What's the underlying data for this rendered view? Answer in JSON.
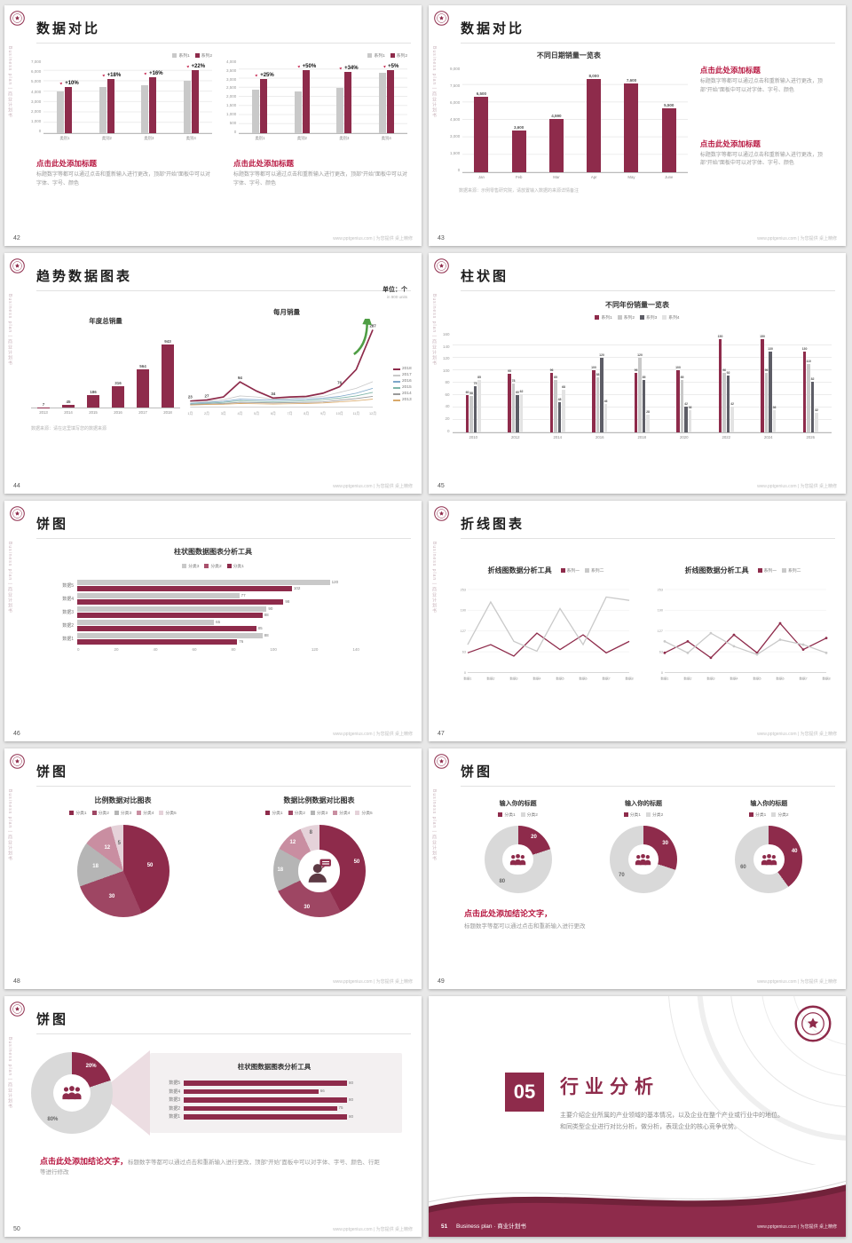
{
  "colors": {
    "maroon": "#8e2b4b",
    "maroonDark": "#6d1f37",
    "mauve": "#a9506c",
    "gray": "#c9c9c9",
    "grayMid": "#9a9a9a",
    "grayDark": "#5d5d66",
    "grayLight": "#d9d9d9",
    "red": "#b81942",
    "green": "#4f9e45"
  },
  "common": {
    "side_text": "Business plan | 商业计划书",
    "footer": "www.pptgenius.com | 为您提供 桌上精修"
  },
  "s42": {
    "num": "42",
    "title": "数据对比",
    "legend": [
      "系列1",
      "系列2"
    ],
    "chart1": {
      "yticks": [
        "7,000",
        "6,000",
        "5,000",
        "4,000",
        "3,000",
        "2,000",
        "1,000",
        "0"
      ],
      "ymax": 7000,
      "cats": [
        "类别1",
        "类别2",
        "类别3",
        "类别4"
      ],
      "series1": [
        4000,
        4400,
        4600,
        5000
      ],
      "series2": [
        4400,
        5200,
        5340,
        6100
      ],
      "labels": [
        "+10%",
        "+18%",
        "+16%",
        "+22%"
      ]
    },
    "chart2": {
      "yticks": [
        "4,000",
        "3,500",
        "3,000",
        "2,500",
        "2,000",
        "1,500",
        "1,000",
        "500",
        "0"
      ],
      "ymax": 4000,
      "cats": [
        "类别1",
        "类别2",
        "类别3",
        "类别4"
      ],
      "series1": [
        2400,
        2300,
        2500,
        3300
      ],
      "series2": [
        3000,
        3450,
        3350,
        3470
      ],
      "labels": [
        "+25%",
        "+50%",
        "+34%",
        "+5%"
      ]
    },
    "blocks": [
      {
        "head": "点击此处添加标题",
        "body": "标题数字等都可以通过点击和重新输入进行更改，顶部“开始”面板中可以对字体、字号、颜色"
      },
      {
        "head": "点击此处添加标题",
        "body": "标题数字等都可以通过点击和重新输入进行更改，顶部“开始”面板中可以对字体、字号、颜色"
      }
    ]
  },
  "s43": {
    "num": "43",
    "title": "数据对比",
    "chart_title": "不同日期销量一览表",
    "yticks": [
      "9,000",
      "7,500",
      "6,000",
      "4,500",
      "3,000",
      "1,500",
      "0"
    ],
    "ymax": 9000,
    "cats": [
      "Jan",
      "Feb",
      "Mar",
      "Apr",
      "May",
      "June"
    ],
    "values": [
      6500,
      3600,
      4590,
      8000,
      7600,
      5500
    ],
    "value_labels": [
      "6,500",
      "3,600",
      "4,590",
      "8,000",
      "7,600",
      "5,500"
    ],
    "note": "数据来源：示例零售研究院，请放置输入数据的来源详情备注",
    "blocks": [
      {
        "head": "点击此处添加标题",
        "body": "标题数字等都可以通过点击和重新输入进行更改，顶部“开始”面板中可以对字体、字号、颜色"
      },
      {
        "head": "点击此处添加标题",
        "body": "标题数字等都可以通过点击和重新输入进行更改，顶部“开始”面板中可以对字体、字号、颜色"
      }
    ]
  },
  "s44": {
    "num": "44",
    "title": "趋势数据图表",
    "unit": "单位：个",
    "unit_sub": "in 900 units",
    "bar_title": "年度总销量",
    "bar_cats": [
      "2013",
      "2014",
      "2015",
      "2016",
      "2017",
      "2018"
    ],
    "bar_values": [
      7,
      45,
      186,
      316,
      564,
      943
    ],
    "line_title": "每月销量",
    "line_x": [
      "1月",
      "2月",
      "3月",
      "4月",
      "5月",
      "6月",
      "7月",
      "8月",
      "9月",
      "10月",
      "11月",
      "12月"
    ],
    "line_legend": [
      "2018",
      "2017",
      "2016",
      "2015",
      "2014",
      "2013"
    ],
    "line_colors": [
      "#8e2b4b",
      "#c9c9c9",
      "#7da7c9",
      "#7fb5a8",
      "#9a9a9a",
      "#d9a96a"
    ],
    "series": {
      "2018": [
        23,
        27,
        38,
        94,
        60,
        34,
        38,
        40,
        52,
        76,
        140,
        287
      ],
      "2017": [
        20,
        22,
        28,
        42,
        38,
        30,
        32,
        36,
        40,
        55,
        70,
        95
      ],
      "2016": [
        15,
        18,
        22,
        30,
        28,
        26,
        28,
        30,
        34,
        40,
        52,
        70
      ],
      "2015": [
        12,
        15,
        18,
        24,
        22,
        20,
        22,
        24,
        28,
        34,
        42,
        55
      ],
      "2014": [
        10,
        12,
        14,
        18,
        17,
        16,
        17,
        18,
        20,
        26,
        32,
        40
      ],
      "2013": [
        8,
        10,
        11,
        14,
        13,
        12,
        13,
        14,
        16,
        20,
        24,
        30
      ]
    },
    "labels": [
      [
        0,
        "23"
      ],
      [
        1,
        "27"
      ],
      [
        3,
        "94"
      ],
      [
        5,
        "34"
      ],
      [
        9,
        "76"
      ],
      [
        11,
        "287"
      ]
    ],
    "note": "数据来源：请在这里填写您的数据来源"
  },
  "s45": {
    "num": "45",
    "title": "柱状图",
    "chart_title": "不同年份销量一览表",
    "legend": [
      "系列1",
      "系列2",
      "系列3",
      "系列4"
    ],
    "series_colors": [
      "#8e2b4b",
      "#c9c9c9",
      "#5d5d66",
      "#e3e3e3"
    ],
    "yticks": [
      "160",
      "140",
      "120",
      "100",
      "80",
      "60",
      "40",
      "20",
      "0"
    ],
    "ymax": 160,
    "groups": [
      {
        "year": "2010",
        "v": [
          60,
          58,
          75,
          85
        ]
      },
      {
        "year": "2012",
        "v": [
          95,
          78,
          60,
          62
        ]
      },
      {
        "year": "2014",
        "v": [
          96,
          85,
          48,
          68
        ]
      },
      {
        "year": "2016",
        "v": [
          100,
          88,
          120,
          46
        ]
      },
      {
        "year": "2018",
        "v": [
          96,
          120,
          85,
          28
        ]
      },
      {
        "year": "2020",
        "v": [
          100,
          85,
          42,
          36
        ]
      },
      {
        "year": "2022",
        "v": [
          150,
          96,
          92,
          42
        ]
      },
      {
        "year": "2024",
        "v": [
          150,
          96,
          130,
          36
        ]
      },
      {
        "year": "2026",
        "v": [
          130,
          110,
          82,
          32
        ]
      }
    ]
  },
  "s46": {
    "num": "46",
    "title": "饼图",
    "chart_title": "柱状图数据图表分析工具",
    "legend": [
      "分类3",
      "分类2",
      "分类1"
    ],
    "legend_colors": [
      "#c9c9c9",
      "#a9506c",
      "#8e2b4b"
    ],
    "xmax": 140,
    "xticks": [
      "0",
      "20",
      "40",
      "60",
      "80",
      "100",
      "120",
      "140"
    ],
    "rows": [
      {
        "cat": "数据5",
        "gray": 120,
        "maroon": 102
      },
      {
        "cat": "数据4",
        "gray": 77,
        "maroon": 98
      },
      {
        "cat": "数据3",
        "gray": 90,
        "maroon": 88
      },
      {
        "cat": "数据2",
        "gray": 65,
        "maroon": 85
      },
      {
        "cat": "数据1",
        "gray": 88,
        "maroon": 76
      }
    ]
  },
  "s47": {
    "num": "47",
    "title": "折线图表",
    "charts": [
      {
        "title": "折线图数据分析工具",
        "legend": [
          "系列一",
          "系列二"
        ],
        "yticks": [
          "253",
          "190",
          "127",
          "63",
          "0"
        ],
        "ymax": 253,
        "x": [
          "数据1",
          "数据2",
          "数据3",
          "数据4",
          "数据5",
          "数据6",
          "数据7",
          "数据8"
        ],
        "s1": [
          60,
          85,
          50,
          120,
          70,
          115,
          60,
          95
        ],
        "s2": [
          85,
          215,
          95,
          65,
          195,
          85,
          230,
          220
        ],
        "dots": false
      },
      {
        "title": "折线图数据分析工具",
        "legend": [
          "系列一",
          "系列二"
        ],
        "yticks": [
          "253",
          "190",
          "127",
          "63",
          "0"
        ],
        "ymax": 253,
        "x": [
          "数据1",
          "数据2",
          "数据3",
          "数据4",
          "数据5",
          "数据6",
          "数据7",
          "数据8"
        ],
        "s1": [
          60,
          95,
          45,
          115,
          60,
          150,
          70,
          105
        ],
        "s2": [
          95,
          60,
          120,
          80,
          55,
          100,
          85,
          60
        ],
        "dots": true
      }
    ]
  },
  "s48": {
    "num": "48",
    "title": "饼图",
    "palette": [
      "#8e2b4b",
      "#9e4663",
      "#b5b5b5",
      "#c98ea1",
      "#e5d2d9"
    ],
    "pie1": {
      "title": "比例数据对比图表",
      "legend": [
        "分类1",
        "分类2",
        "分类3",
        "分类4",
        "分类5"
      ],
      "slices": [
        {
          "v": 50,
          "label": "50"
        },
        {
          "v": 30,
          "label": "30"
        },
        {
          "v": 18,
          "label": "18"
        },
        {
          "v": 12,
          "label": "12"
        },
        {
          "v": 5,
          "label": "5"
        }
      ]
    },
    "pie2": {
      "title": "数据比例数据对比图表",
      "legend": [
        "分类1",
        "分类2",
        "分类3",
        "分类4",
        "分类5"
      ],
      "slices": [
        {
          "v": 50,
          "label": "50"
        },
        {
          "v": 30,
          "label": "30"
        },
        {
          "v": 18,
          "label": "18"
        },
        {
          "v": 12,
          "label": "12"
        },
        {
          "v": 8,
          "label": "8"
        }
      ]
    }
  },
  "s49": {
    "num": "49",
    "title": "饼图",
    "donuts": [
      {
        "title": "输入你的标题",
        "legend": [
          "分类1",
          "分类2"
        ],
        "maroon": 20,
        "gray": 80,
        "m_label": "20",
        "g_label": "80"
      },
      {
        "title": "输入你的标题",
        "legend": [
          "分类1",
          "分类2"
        ],
        "maroon": 30,
        "gray": 70,
        "m_label": "30",
        "g_label": "70"
      },
      {
        "title": "输入你的标题",
        "legend": [
          "分类1",
          "分类2"
        ],
        "maroon": 40,
        "gray": 60,
        "m_label": "40",
        "g_label": "60"
      }
    ],
    "concl_head": "点击此处添加结论文字，",
    "concl_body": "标题数字等都可以通过点击和重新输入进行更改"
  },
  "s50": {
    "num": "50",
    "title": "饼图",
    "donut": {
      "maroon": 20,
      "gray": 80,
      "m_label": "20%",
      "g_label": "80%"
    },
    "panel_title": "柱状图数据图表分析工具",
    "rows": [
      {
        "cat": "数据5",
        "v": 80
      },
      {
        "cat": "数据4",
        "v": 66
      },
      {
        "cat": "数据3",
        "v": 80
      },
      {
        "cat": "数据2",
        "v": 75
      },
      {
        "cat": "数据1",
        "v": 80
      }
    ],
    "concl_head": "点击此处添加结论文字，",
    "concl_body": "标题数字等都可以通过点击和重新输入进行更改，顶部“开始”面板中可以对字体、字号、颜色、行距等进行修改"
  },
  "s51": {
    "num": "51",
    "footer_left": "Business plan · 商业计划书",
    "section_num": "05",
    "section_title": "行业分析",
    "body": "主要介绍企业所属的产业领域的基本情况，以及企业在整个产业或行业中的地位。和同类型企业进行对比分析，做分析，表现企业的核心竞争优势。"
  }
}
